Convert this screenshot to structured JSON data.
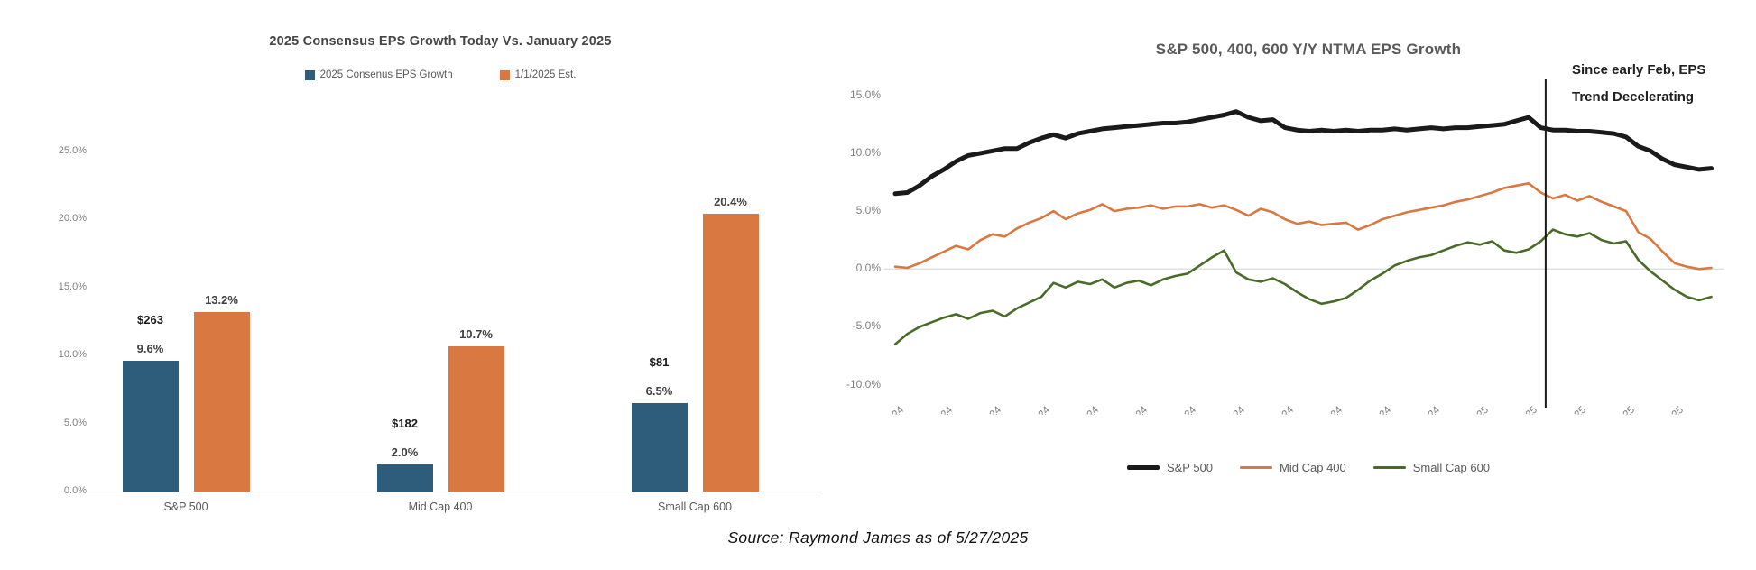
{
  "page": {
    "source_note": "Source: Raymond James as of 5/27/2025"
  },
  "colors": {
    "blue": "#2E5D7C",
    "orange": "#D97840",
    "green": "#4A6B28",
    "black": "#1A1A1A",
    "axis_gray": "#D6D6D6",
    "zero_line_gray": "#DCDCDC",
    "tick_gray": "#7F7F7F",
    "label_gray": "#595959"
  },
  "chart_data": [
    {
      "type": "bar",
      "title": "2025 Consensus EPS Growth Today Vs. January 2025",
      "categories": [
        "S&P 500",
        "Mid Cap 400",
        "Small Cap 600"
      ],
      "series": [
        {
          "name": "2025 Consenus EPS Growth",
          "color_key": "blue",
          "values": [
            9.6,
            2.0,
            6.5
          ],
          "value_labels": [
            "9.6%",
            "2.0%",
            "6.5%"
          ],
          "dollar_labels": [
            "$263",
            "$182",
            "$81"
          ]
        },
        {
          "name": "1/1/2025 Est.",
          "color_key": "orange",
          "values": [
            13.2,
            10.7,
            20.4
          ],
          "value_labels": [
            "13.2%",
            "10.7%",
            "20.4%"
          ]
        }
      ],
      "y_ticks": {
        "labels": [
          "0.0%",
          "5.0%",
          "10.0%",
          "15.0%",
          "20.0%",
          "25.0%"
        ],
        "values": [
          0,
          5,
          10,
          15,
          20,
          25
        ]
      },
      "ylim": [
        0,
        27.5
      ],
      "grid": false,
      "legend_position": "top"
    },
    {
      "type": "line",
      "title": "S&P 500, 400, 600 Y/Y NTMA EPS Growth",
      "annotation": {
        "lines": [
          "Since early Feb, EPS",
          "Trend Decelerating"
        ],
        "x_month_index": 13.35
      },
      "x_ticks": [
        "1/3/2024",
        "2/3/2024",
        "3/3/2024",
        "4/3/2024",
        "5/3/2024",
        "6/3/2024",
        "7/3/2024",
        "8/3/2024",
        "9/3/2024",
        "10/3/2024",
        "11/3/2024",
        "12/3/2024",
        "1/3/2025",
        "2/3/2025",
        "3/3/2025",
        "4/3/2025",
        "5/3/2025"
      ],
      "y_ticks": {
        "labels": [
          "15.0%",
          "10.0%",
          "5.0%",
          "0.0%",
          "-5.0%",
          "-10.0%"
        ],
        "values": [
          15,
          10,
          5,
          0,
          -5,
          -10
        ]
      },
      "ylim": [
        -10,
        15
      ],
      "grid": "zero-line-only",
      "legend_position": "bottom",
      "points_per_month": 4,
      "series": [
        {
          "name": "S&P 500",
          "color_key": "black",
          "stroke_width": 5,
          "values": [
            6.5,
            6.6,
            7.2,
            8.0,
            8.6,
            9.3,
            9.8,
            10.0,
            10.2,
            10.4,
            10.4,
            10.9,
            11.3,
            11.6,
            11.3,
            11.7,
            11.9,
            12.1,
            12.2,
            12.3,
            12.4,
            12.5,
            12.6,
            12.6,
            12.7,
            12.9,
            13.1,
            13.3,
            13.6,
            13.1,
            12.8,
            12.9,
            12.2,
            12.0,
            11.9,
            12.0,
            11.9,
            12.0,
            11.9,
            12.0,
            12.0,
            12.1,
            12.0,
            12.1,
            12.2,
            12.1,
            12.2,
            12.2,
            12.3,
            12.4,
            12.5,
            12.8,
            13.1,
            12.2,
            12.0,
            12.0,
            11.9,
            11.9,
            11.8,
            11.7,
            11.4,
            10.6,
            10.2,
            9.5,
            9.0,
            8.8,
            8.6,
            8.7
          ]
        },
        {
          "name": "Mid Cap 400",
          "color_key": "orange",
          "stroke_width": 2.6,
          "values": [
            0.2,
            0.1,
            0.5,
            1.0,
            1.5,
            2.0,
            1.7,
            2.5,
            3.0,
            2.8,
            3.5,
            4.0,
            4.4,
            5.0,
            4.3,
            4.8,
            5.1,
            5.6,
            5.0,
            5.2,
            5.3,
            5.5,
            5.2,
            5.4,
            5.4,
            5.6,
            5.3,
            5.5,
            5.1,
            4.6,
            5.2,
            4.9,
            4.3,
            3.9,
            4.1,
            3.8,
            3.9,
            4.0,
            3.4,
            3.8,
            4.3,
            4.6,
            4.9,
            5.1,
            5.3,
            5.5,
            5.8,
            6.0,
            6.3,
            6.6,
            7.0,
            7.2,
            7.4,
            6.6,
            6.1,
            6.4,
            5.9,
            6.3,
            5.8,
            5.4,
            5.0,
            3.2,
            2.6,
            1.5,
            0.5,
            0.2,
            0.0,
            0.1
          ]
        },
        {
          "name": "Small Cap 600",
          "color_key": "green",
          "stroke_width": 2.6,
          "values": [
            -6.5,
            -5.6,
            -5.0,
            -4.6,
            -4.2,
            -3.9,
            -4.3,
            -3.8,
            -3.6,
            -4.1,
            -3.4,
            -2.9,
            -2.4,
            -1.2,
            -1.6,
            -1.1,
            -1.3,
            -0.9,
            -1.6,
            -1.2,
            -1.0,
            -1.4,
            -0.9,
            -0.6,
            -0.4,
            0.3,
            1.0,
            1.6,
            -0.3,
            -0.9,
            -1.1,
            -0.8,
            -1.3,
            -2.0,
            -2.6,
            -3.0,
            -2.8,
            -2.5,
            -1.8,
            -1.0,
            -0.4,
            0.3,
            0.7,
            1.0,
            1.2,
            1.6,
            2.0,
            2.3,
            2.1,
            2.4,
            1.6,
            1.4,
            1.7,
            2.4,
            3.4,
            3.0,
            2.8,
            3.1,
            2.5,
            2.2,
            2.4,
            0.8,
            -0.2,
            -1.0,
            -1.8,
            -2.4,
            -2.7,
            -2.4
          ]
        }
      ]
    }
  ]
}
